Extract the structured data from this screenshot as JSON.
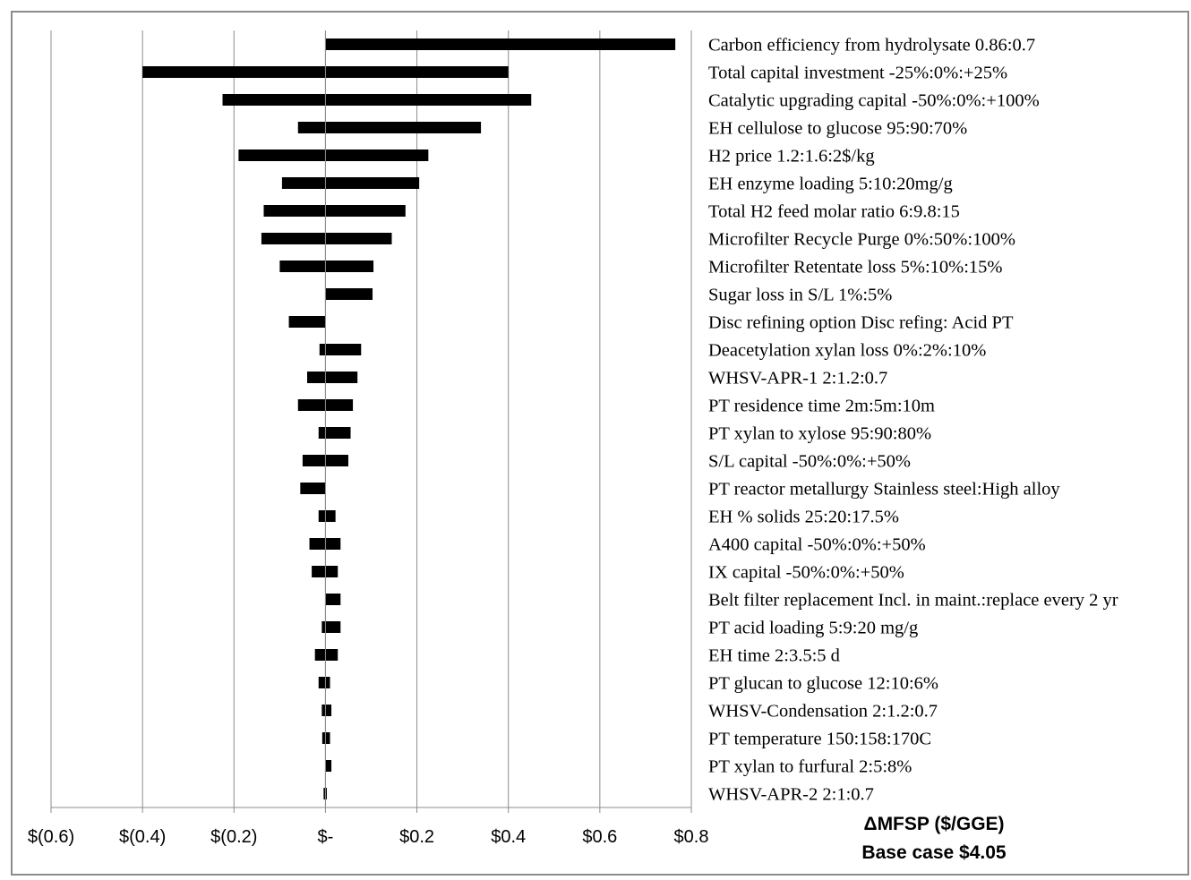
{
  "chart_data": {
    "type": "bar",
    "orientation": "horizontal",
    "subtype": "tornado",
    "categories": [
      "Carbon efficiency from hydrolysate 0.86:0.7",
      "Total capital investment -25%:0%:+25%",
      "Catalytic upgrading capital -50%:0%:+100%",
      "EH cellulose to glucose 95:90:70%",
      "H2 price 1.2:1.6:2$/kg",
      "EH enzyme loading 5:10:20mg/g",
      "Total H2 feed molar ratio 6:9.8:15",
      "Microfilter Recycle Purge 0%:50%:100%",
      "Microfilter Retentate loss 5%:10%:15%",
      "Sugar loss in S/L 1%:5%",
      "Disc refining option Disc refing: Acid PT",
      "Deacetylation xylan loss  0%:2%:10%",
      "WHSV-APR-1 2:1.2:0.7",
      "PT residence time 2m:5m:10m",
      "PT xylan to xylose 95:90:80%",
      "S/L capital -50%:0%:+50%",
      "PT reactor metallurgy Stainless steel:High alloy",
      "EH % solids 25:20:17.5%",
      "A400 capital -50%:0%:+50%",
      "IX capital -50%:0%:+50%",
      "Belt filter replacement Incl. in maint.:replace every 2 yr",
      "PT acid loading 5:9:20 mg/g",
      "EH time 2:3.5:5 d",
      "PT glucan to glucose 12:10:6%",
      "WHSV-Condensation 2:1.2:0.7",
      "PT temperature 150:158:170C",
      "PT xylan to furfural 2:5:8%",
      "WHSV-APR-2 2:1:0.7"
    ],
    "series": [
      {
        "values": [
          0,
          -0.4,
          -0.225,
          -0.06,
          -0.19,
          -0.095,
          -0.135,
          -0.14,
          -0.1,
          0,
          -0.08,
          -0.013,
          -0.04,
          -0.06,
          -0.015,
          -0.05,
          -0.055,
          -0.015,
          -0.035,
          -0.03,
          0,
          -0.008,
          -0.023,
          -0.015,
          -0.008,
          -0.007,
          0,
          -0.004
        ]
      },
      {
        "values": [
          0.765,
          0.4,
          0.45,
          0.34,
          0.225,
          0.205,
          0.175,
          0.145,
          0.105,
          0.103,
          0,
          0.078,
          0.07,
          0.06,
          0.055,
          0.05,
          0,
          0.022,
          0.033,
          0.027,
          0.033,
          0.033,
          0.027,
          0.01,
          0.013,
          0.01,
          0.013,
          0.003
        ]
      }
    ],
    "xlim": [
      -0.6,
      0.8
    ],
    "xticks": [
      -0.6,
      -0.4,
      -0.2,
      0,
      0.2,
      0.4,
      0.6,
      0.8
    ],
    "xtick_labels": [
      "$(0.6)",
      "$(0.4)",
      "$(0.2)",
      "$-",
      "$0.2",
      "$0.4",
      "$0.6",
      "$0.8"
    ],
    "xlabel": "ΔMFSP ($/GGE)",
    "xlabel_line2": "Base case $4.05",
    "grid": "vertical",
    "bar_color": "#000000",
    "grid_color": "#8c8c8c"
  }
}
